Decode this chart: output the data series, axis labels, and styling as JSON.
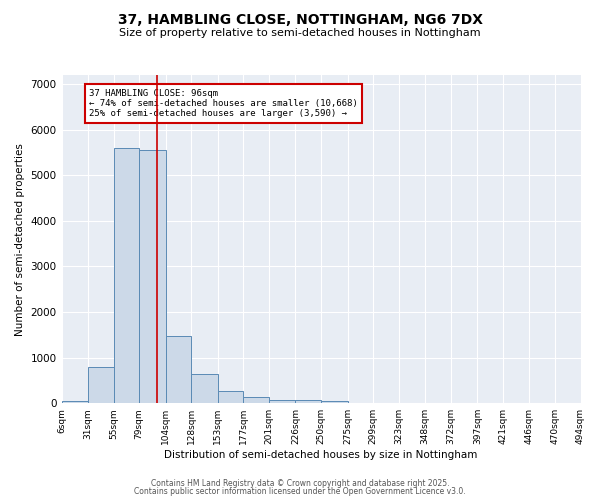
{
  "title_line1": "37, HAMBLING CLOSE, NOTTINGHAM, NG6 7DX",
  "title_line2": "Size of property relative to semi-detached houses in Nottingham",
  "xlabel": "Distribution of semi-detached houses by size in Nottingham",
  "ylabel": "Number of semi-detached properties",
  "bar_edges": [
    6,
    31,
    55,
    79,
    104,
    128,
    153,
    177,
    201,
    226,
    250,
    275,
    299,
    323,
    348,
    372,
    397,
    421,
    446,
    470,
    494
  ],
  "bar_heights": [
    50,
    800,
    5600,
    5550,
    1480,
    650,
    270,
    130,
    80,
    60,
    40,
    0,
    0,
    0,
    0,
    0,
    0,
    0,
    0,
    0
  ],
  "bar_color": "#ccd9e8",
  "bar_edge_color": "#5a8ab5",
  "property_size": 96,
  "red_line_color": "#cc0000",
  "annotation_text": "37 HAMBLING CLOSE: 96sqm\n← 74% of semi-detached houses are smaller (10,668)\n25% of semi-detached houses are larger (3,590) →",
  "annotation_box_color": "#cc0000",
  "ylim": [
    0,
    7200
  ],
  "yticks": [
    0,
    1000,
    2000,
    3000,
    4000,
    5000,
    6000,
    7000
  ],
  "background_color": "#e8edf4",
  "footer_line1": "Contains HM Land Registry data © Crown copyright and database right 2025.",
  "footer_line2": "Contains public sector information licensed under the Open Government Licence v3.0."
}
